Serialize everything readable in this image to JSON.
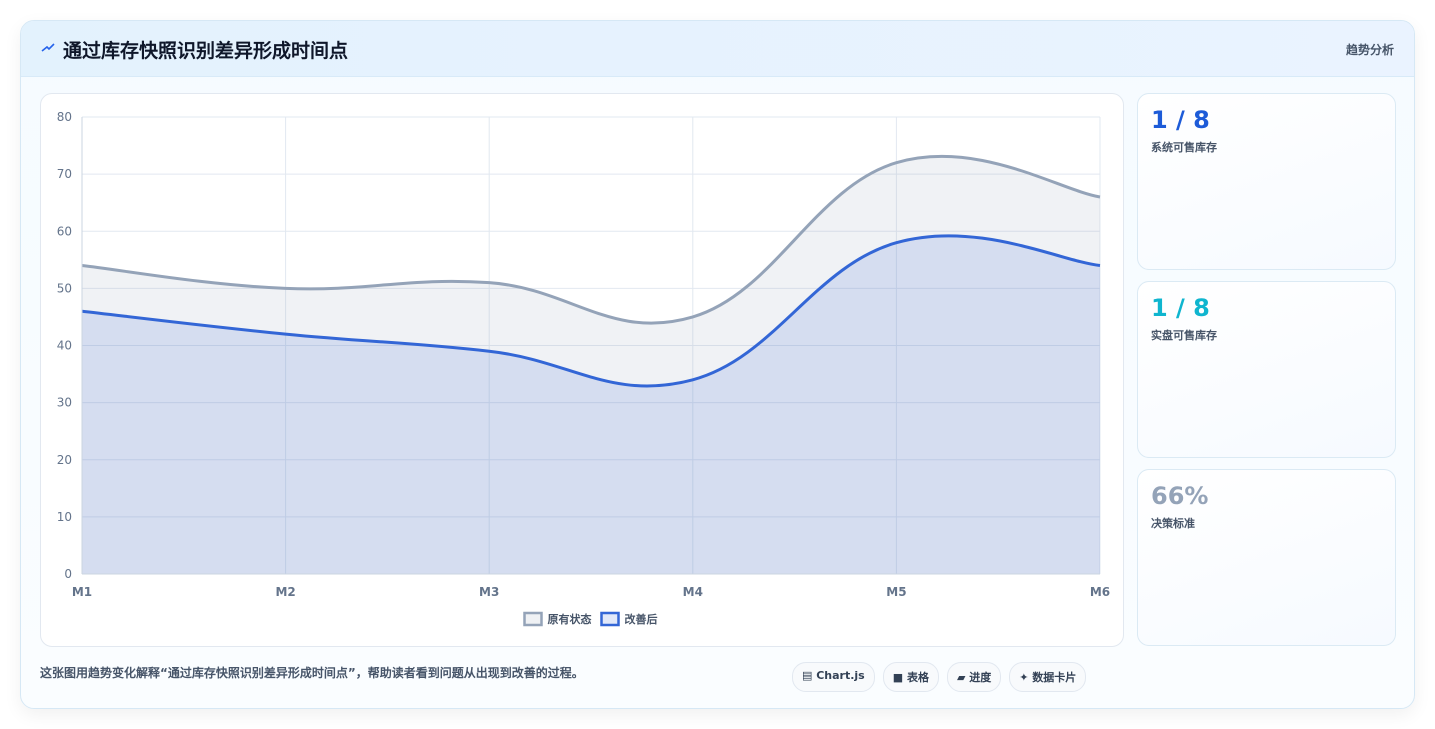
{
  "header": {
    "title": "通过库存快照识别差异形成时间点",
    "tag": "趋势分析"
  },
  "chart_data": {
    "type": "line",
    "categories": [
      "M1",
      "M2",
      "M3",
      "M4",
      "M5",
      "M6"
    ],
    "series": [
      {
        "name": "原有状态",
        "color": "#94a3b8",
        "values": [
          54,
          50,
          51,
          45,
          72,
          66
        ]
      },
      {
        "name": "改善后",
        "color": "#3366d6",
        "values": [
          46,
          42,
          39,
          34,
          58,
          54
        ]
      }
    ],
    "ylim": [
      0,
      80
    ],
    "yticks": [
      0,
      10,
      20,
      30,
      40,
      50,
      60,
      70,
      80
    ],
    "grid": true,
    "fill": true,
    "legend": "bottom"
  },
  "stats": [
    {
      "value": "1 / 8",
      "label": "系统可售库存",
      "color": "#1d5bd8"
    },
    {
      "value": "1 / 8",
      "label": "实盘可售库存",
      "color": "#0fb5cf"
    },
    {
      "value": "66%",
      "label": "决策标准",
      "color": "#94a3b8"
    }
  ],
  "footer": {
    "text": "这张图用趋势变化解释“通过库存快照识别差异形成时间点”，帮助读者看到问题从出现到改善的过程。",
    "chips": [
      "▤ Chart.js",
      "■ 表格",
      "▰ 进度",
      "✦ 数据卡片"
    ]
  }
}
